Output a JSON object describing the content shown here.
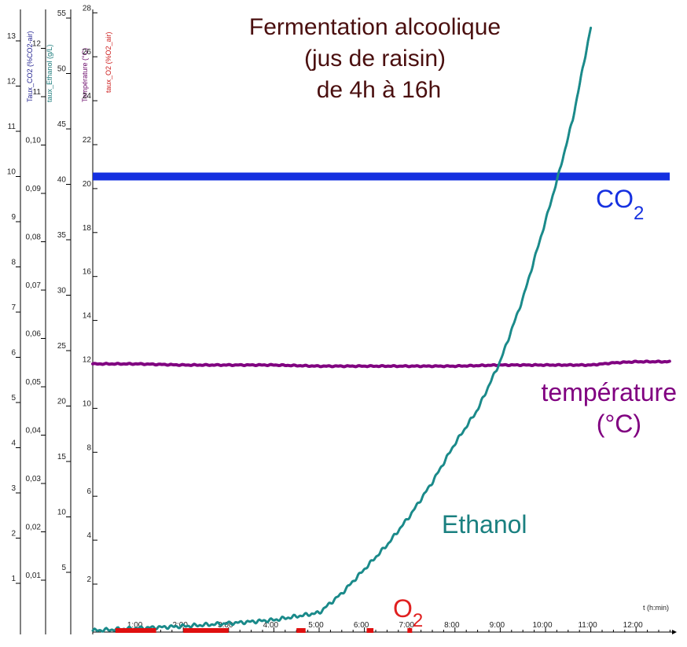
{
  "chart_data": {
    "type": "line",
    "title_lines": [
      "Fermentation alcoolique",
      "(jus de raisin)",
      "de 4h à 16h"
    ],
    "x_label": "t (h:min)",
    "x_range": [
      "00:00",
      "12:45"
    ],
    "x_ticks": [
      "1:00",
      "2:00",
      "3:00",
      "4:00",
      "5:00",
      "6:00",
      "7:00",
      "8:00",
      "9:00",
      "10:00",
      "11:00",
      "12:00"
    ],
    "axes": [
      {
        "label": "Taux_CO2 (%CO2-air)",
        "color": "#1f1f8f",
        "ticks": [
          "1",
          "2",
          "3",
          "4",
          "5",
          "6",
          "7",
          "8",
          "9",
          "10",
          "11",
          "12",
          "13"
        ]
      },
      {
        "label": "taux_Ethanol (g/L)",
        "color": "#1a7a7a",
        "ticks": [
          "0,01",
          "0,02",
          "0,03",
          "0,04",
          "0,05",
          "0,06",
          "0,07",
          "0,08",
          "0,09",
          "0,10",
          "11",
          "12"
        ]
      },
      {
        "label": "Température (°C)",
        "color": "#6a0a6a",
        "ticks": [
          "5",
          "10",
          "15",
          "20",
          "25",
          "30",
          "35",
          "40",
          "45",
          "50",
          "55"
        ]
      },
      {
        "label": "taux_O2 (%O2_air)",
        "color": "#cc1a1a",
        "ticks": [
          "2",
          "4",
          "6",
          "8",
          "10",
          "12",
          "14",
          "16",
          "18",
          "20",
          "22",
          "24",
          "26",
          "28"
        ]
      }
    ],
    "series": [
      {
        "name": "CO2",
        "color": "#1530e0",
        "axis": "Taux_CO2 (%CO2-air)",
        "x_hours": [
          0,
          12.75
        ],
        "y": [
          10.0,
          10.0
        ]
      },
      {
        "name": "température (°C)",
        "color": "#800080",
        "axis": "Température (°C)",
        "x_hours": [
          0,
          1,
          2,
          3,
          4,
          5,
          6,
          7,
          8,
          9,
          10,
          11,
          11.5,
          12,
          12.75
        ],
        "y": [
          23.8,
          23.8,
          23.7,
          23.7,
          23.7,
          23.6,
          23.6,
          23.6,
          23.6,
          23.7,
          23.7,
          23.7,
          23.9,
          24.0,
          24.0
        ]
      },
      {
        "name": "Ethanol",
        "color": "#1a8a8a",
        "axis": "taux_Ethanol (g/L)",
        "x_hours": [
          0,
          1,
          2,
          3,
          4,
          5,
          5.5,
          6,
          6.5,
          7,
          7.5,
          8,
          8.5,
          9,
          9.5,
          10,
          10.3,
          10.6,
          11.0
        ],
        "y": [
          0.0003,
          0.0008,
          0.0012,
          0.0018,
          0.0025,
          0.004,
          0.008,
          0.013,
          0.018,
          0.024,
          0.031,
          0.039,
          0.046,
          0.056,
          0.069,
          0.085,
          0.095,
          0.106,
          0.125
        ]
      },
      {
        "name": "O2",
        "color": "#e01010",
        "axis": "taux_O2 (%O2_air)",
        "x_hours": [
          0.5,
          1.5,
          2,
          3,
          4.5,
          6.1,
          7
        ],
        "y": [
          0.05,
          0.05,
          0.05,
          0.05,
          0.05,
          0.05,
          0.05
        ]
      }
    ],
    "annotations": [
      {
        "text": "CO",
        "sub": "2",
        "color": "#1530e0"
      },
      {
        "text": "température",
        "color": "#800080"
      },
      {
        "text": "(°C)",
        "color": "#800080"
      },
      {
        "text": "Ethanol",
        "color": "#1a8080"
      },
      {
        "text": "O",
        "sub": "2",
        "color": "#e02020"
      }
    ]
  }
}
